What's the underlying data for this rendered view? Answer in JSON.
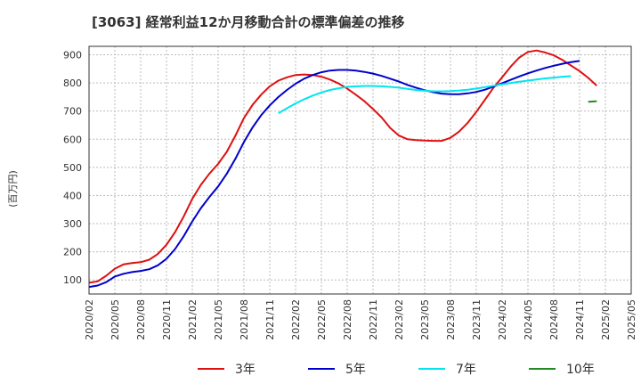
{
  "chart_data": {
    "type": "line",
    "title": "[3063]  経常利益12か月移動合計の標準偏差の推移",
    "ylabel": "(百万円)",
    "xlabel": "",
    "ylim": [
      50,
      930
    ],
    "yticks": [
      100,
      200,
      300,
      400,
      500,
      600,
      700,
      800,
      900
    ],
    "xticks": [
      "2020/02",
      "2020/05",
      "2020/08",
      "2020/11",
      "2021/02",
      "2021/05",
      "2021/08",
      "2021/11",
      "2022/02",
      "2022/05",
      "2022/08",
      "2022/11",
      "2023/02",
      "2023/05",
      "2023/08",
      "2023/11",
      "2024/02",
      "2024/05",
      "2024/08",
      "2024/11",
      "2025/02",
      "2025/05"
    ],
    "grid": true,
    "legend_position": "bottom",
    "series": [
      {
        "name": "3年",
        "color": "#dd1111",
        "points": [
          [
            "2020/02",
            90
          ],
          [
            "2020/03",
            95
          ],
          [
            "2020/04",
            115
          ],
          [
            "2020/05",
            140
          ],
          [
            "2020/06",
            155
          ],
          [
            "2020/07",
            160
          ],
          [
            "2020/08",
            163
          ],
          [
            "2020/09",
            172
          ],
          [
            "2020/10",
            192
          ],
          [
            "2020/11",
            225
          ],
          [
            "2020/12",
            270
          ],
          [
            "2021/01",
            325
          ],
          [
            "2021/02",
            388
          ],
          [
            "2021/03",
            438
          ],
          [
            "2021/04",
            478
          ],
          [
            "2021/05",
            512
          ],
          [
            "2021/06",
            555
          ],
          [
            "2021/07",
            612
          ],
          [
            "2021/08",
            675
          ],
          [
            "2021/09",
            722
          ],
          [
            "2021/10",
            758
          ],
          [
            "2021/11",
            788
          ],
          [
            "2021/12",
            808
          ],
          [
            "2022/01",
            820
          ],
          [
            "2022/02",
            828
          ],
          [
            "2022/03",
            830
          ],
          [
            "2022/04",
            828
          ],
          [
            "2022/05",
            822
          ],
          [
            "2022/06",
            812
          ],
          [
            "2022/07",
            798
          ],
          [
            "2022/08",
            780
          ],
          [
            "2022/09",
            758
          ],
          [
            "2022/10",
            735
          ],
          [
            "2022/11",
            707
          ],
          [
            "2022/12",
            677
          ],
          [
            "2023/01",
            640
          ],
          [
            "2023/02",
            613
          ],
          [
            "2023/03",
            600
          ],
          [
            "2023/04",
            597
          ],
          [
            "2023/05",
            595
          ],
          [
            "2023/06",
            594
          ],
          [
            "2023/07",
            594
          ],
          [
            "2023/08",
            605
          ],
          [
            "2023/09",
            627
          ],
          [
            "2023/10",
            658
          ],
          [
            "2023/11",
            697
          ],
          [
            "2023/12",
            740
          ],
          [
            "2024/01",
            783
          ],
          [
            "2024/02",
            820
          ],
          [
            "2024/03",
            858
          ],
          [
            "2024/04",
            890
          ],
          [
            "2024/05",
            910
          ],
          [
            "2024/06",
            915
          ],
          [
            "2024/07",
            908
          ],
          [
            "2024/08",
            898
          ],
          [
            "2024/09",
            882
          ],
          [
            "2024/10",
            862
          ],
          [
            "2024/11",
            842
          ],
          [
            "2024/12",
            818
          ],
          [
            "2025/01",
            790
          ]
        ]
      },
      {
        "name": "5年",
        "color": "#0000cc",
        "points": [
          [
            "2020/02",
            75
          ],
          [
            "2020/03",
            80
          ],
          [
            "2020/04",
            92
          ],
          [
            "2020/05",
            112
          ],
          [
            "2020/06",
            122
          ],
          [
            "2020/07",
            128
          ],
          [
            "2020/08",
            132
          ],
          [
            "2020/09",
            138
          ],
          [
            "2020/10",
            152
          ],
          [
            "2020/11",
            175
          ],
          [
            "2020/12",
            210
          ],
          [
            "2021/01",
            255
          ],
          [
            "2021/02",
            308
          ],
          [
            "2021/03",
            355
          ],
          [
            "2021/04",
            395
          ],
          [
            "2021/05",
            432
          ],
          [
            "2021/06",
            477
          ],
          [
            "2021/07",
            530
          ],
          [
            "2021/08",
            590
          ],
          [
            "2021/09",
            642
          ],
          [
            "2021/10",
            685
          ],
          [
            "2021/11",
            720
          ],
          [
            "2021/12",
            750
          ],
          [
            "2022/01",
            775
          ],
          [
            "2022/02",
            797
          ],
          [
            "2022/03",
            815
          ],
          [
            "2022/04",
            828
          ],
          [
            "2022/05",
            838
          ],
          [
            "2022/06",
            844
          ],
          [
            "2022/07",
            846
          ],
          [
            "2022/08",
            846
          ],
          [
            "2022/09",
            844
          ],
          [
            "2022/10",
            839
          ],
          [
            "2022/11",
            833
          ],
          [
            "2022/12",
            825
          ],
          [
            "2023/01",
            815
          ],
          [
            "2023/02",
            805
          ],
          [
            "2023/03",
            793
          ],
          [
            "2023/04",
            783
          ],
          [
            "2023/05",
            774
          ],
          [
            "2023/06",
            767
          ],
          [
            "2023/07",
            762
          ],
          [
            "2023/08",
            760
          ],
          [
            "2023/09",
            760
          ],
          [
            "2023/10",
            763
          ],
          [
            "2023/11",
            768
          ],
          [
            "2023/12",
            776
          ],
          [
            "2024/01",
            787
          ],
          [
            "2024/02",
            799
          ],
          [
            "2024/03",
            811
          ],
          [
            "2024/04",
            823
          ],
          [
            "2024/05",
            834
          ],
          [
            "2024/06",
            844
          ],
          [
            "2024/07",
            853
          ],
          [
            "2024/08",
            861
          ],
          [
            "2024/09",
            868
          ],
          [
            "2024/10",
            874
          ],
          [
            "2024/11",
            878
          ]
        ]
      },
      {
        "name": "7年",
        "color": "#00e5ee",
        "points": [
          [
            "2021/12",
            692
          ],
          [
            "2022/01",
            710
          ],
          [
            "2022/02",
            727
          ],
          [
            "2022/03",
            742
          ],
          [
            "2022/04",
            755
          ],
          [
            "2022/05",
            766
          ],
          [
            "2022/06",
            775
          ],
          [
            "2022/07",
            781
          ],
          [
            "2022/08",
            786
          ],
          [
            "2022/09",
            788
          ],
          [
            "2022/10",
            789
          ],
          [
            "2022/11",
            789
          ],
          [
            "2022/12",
            788
          ],
          [
            "2023/01",
            786
          ],
          [
            "2023/02",
            783
          ],
          [
            "2023/03",
            779
          ],
          [
            "2023/04",
            775
          ],
          [
            "2023/05",
            772
          ],
          [
            "2023/06",
            770
          ],
          [
            "2023/07",
            770
          ],
          [
            "2023/08",
            771
          ],
          [
            "2023/09",
            773
          ],
          [
            "2023/10",
            776
          ],
          [
            "2023/11",
            780
          ],
          [
            "2023/12",
            785
          ],
          [
            "2024/01",
            790
          ],
          [
            "2024/02",
            795
          ],
          [
            "2024/03",
            800
          ],
          [
            "2024/04",
            804
          ],
          [
            "2024/05",
            808
          ],
          [
            "2024/06",
            812
          ],
          [
            "2024/07",
            816
          ],
          [
            "2024/08",
            819
          ],
          [
            "2024/09",
            822
          ],
          [
            "2024/10",
            824
          ]
        ]
      },
      {
        "name": "10年",
        "color": "#228b22",
        "points": [
          [
            "2024/12",
            733
          ],
          [
            "2025/01",
            735
          ]
        ]
      }
    ]
  }
}
